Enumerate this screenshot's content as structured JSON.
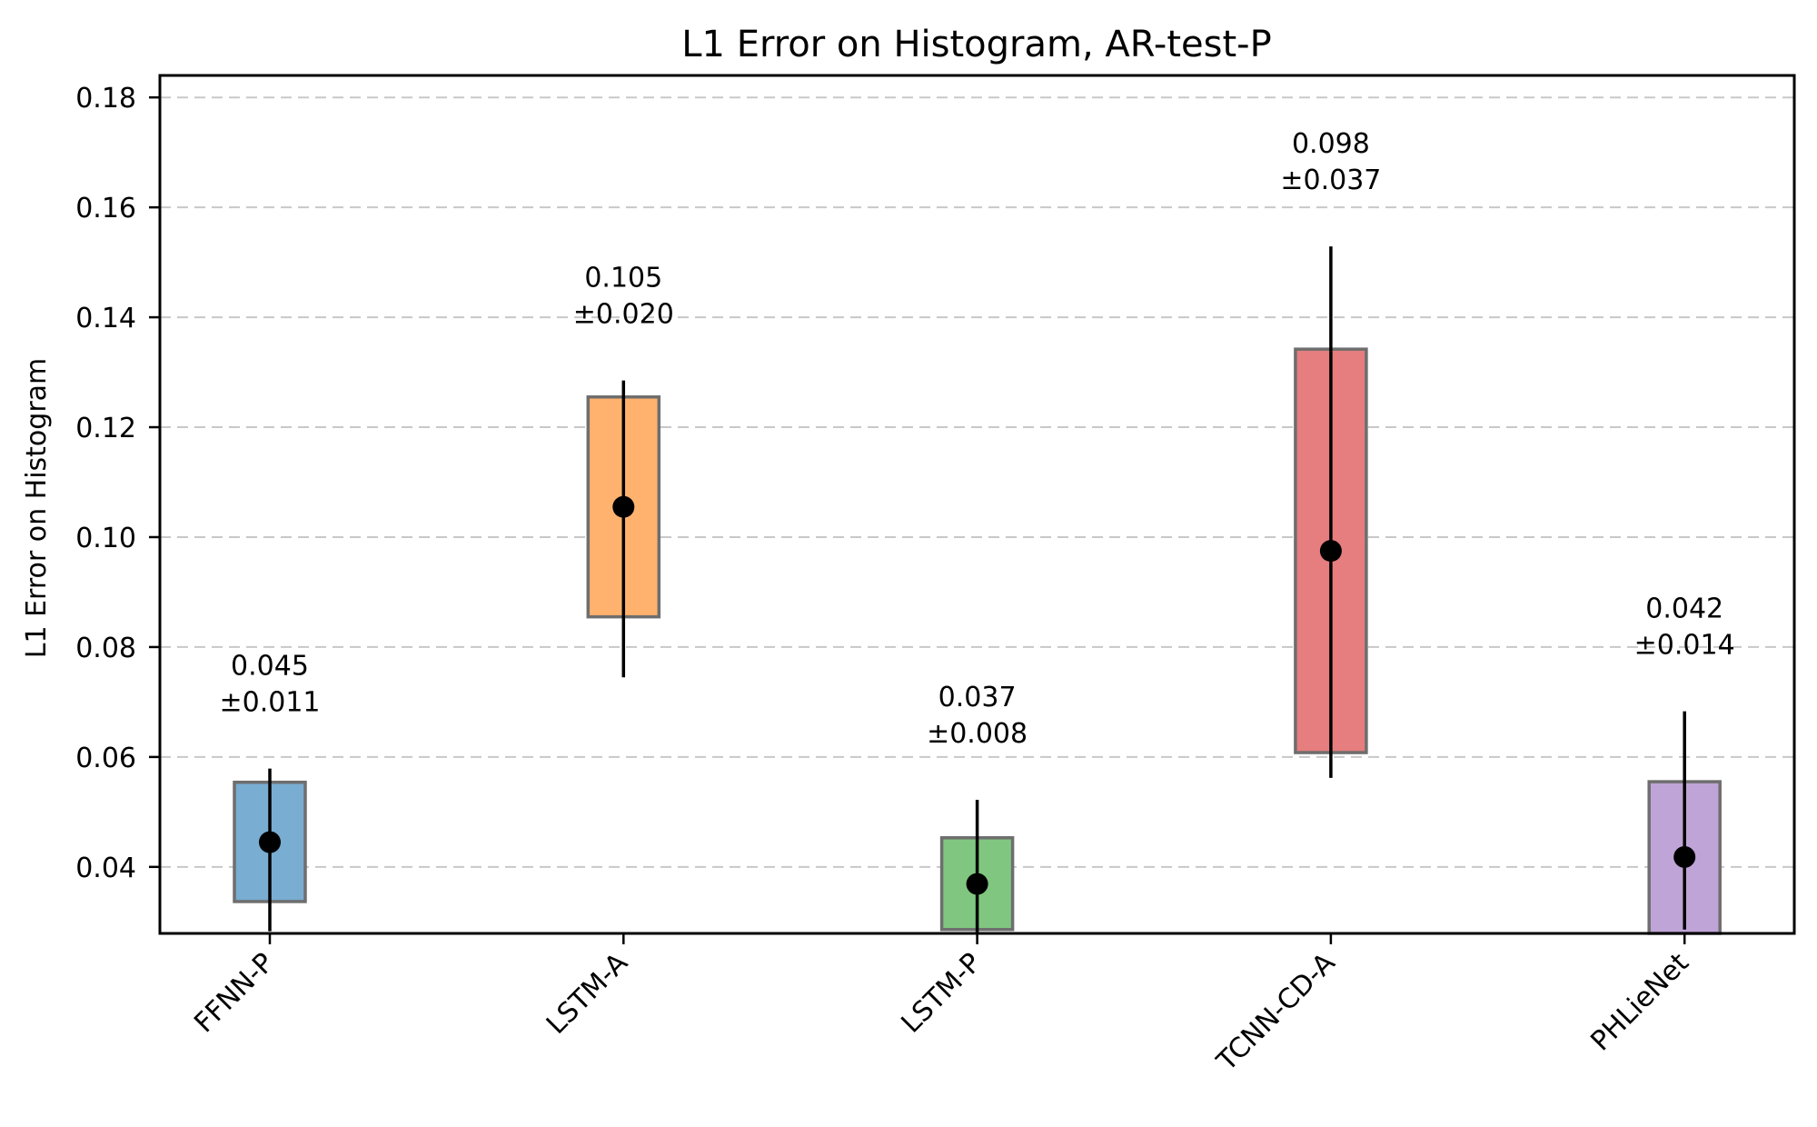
{
  "chart_data": {
    "type": "box-errorbar",
    "title": "L1 Error on Histogram, AR-test-P",
    "xlabel": "",
    "ylabel": "L1 Error on Histogram",
    "ylim": [
      0.0279,
      0.184
    ],
    "yticks": [
      0.04,
      0.06,
      0.08,
      0.1,
      0.12,
      0.14,
      0.16,
      0.18
    ],
    "ytick_labels": [
      "0.04",
      "0.06",
      "0.08",
      "0.10",
      "0.12",
      "0.14",
      "0.16",
      "0.18"
    ],
    "grid": {
      "axis": "y",
      "style": "dashed"
    },
    "xtick_rotation": -45,
    "categories": [
      "FFNN-P",
      "LSTM-A",
      "LSTM-P",
      "TCNN-CD-A",
      "PHLieNet"
    ],
    "series": [
      {
        "name": "FFNN-P",
        "color": "#79add2",
        "mean": 0.0445,
        "box_low": 0.0337,
        "box_high": 0.0554,
        "whisker_low": 0.0283,
        "whisker_high": 0.0579,
        "annotation": [
          "0.045",
          "±0.011"
        ]
      },
      {
        "name": "LSTM-A",
        "color": "#ffb26e",
        "mean": 0.1055,
        "box_low": 0.0855,
        "box_high": 0.1255,
        "whisker_low": 0.0745,
        "whisker_high": 0.1285,
        "annotation": [
          "0.105",
          "±0.020"
        ]
      },
      {
        "name": "LSTM-P",
        "color": "#80c680",
        "mean": 0.0369,
        "box_low": 0.0286,
        "box_high": 0.0453,
        "whisker_low": 0.0262,
        "whisker_high": 0.0522,
        "annotation": [
          "0.037",
          "±0.008"
        ]
      },
      {
        "name": "TCNN-CD-A",
        "color": "#e67d7e",
        "mean": 0.0975,
        "box_low": 0.0608,
        "box_high": 0.1342,
        "whisker_low": 0.0562,
        "whisker_high": 0.1529,
        "annotation": [
          "0.098",
          "±0.037"
        ]
      },
      {
        "name": "PHLieNet",
        "color": "#bfa4d7",
        "mean": 0.0418,
        "box_low": 0.0279,
        "box_high": 0.0555,
        "whisker_low": 0.0286,
        "whisker_high": 0.0683,
        "annotation": [
          "0.042",
          "±0.014"
        ]
      }
    ]
  }
}
